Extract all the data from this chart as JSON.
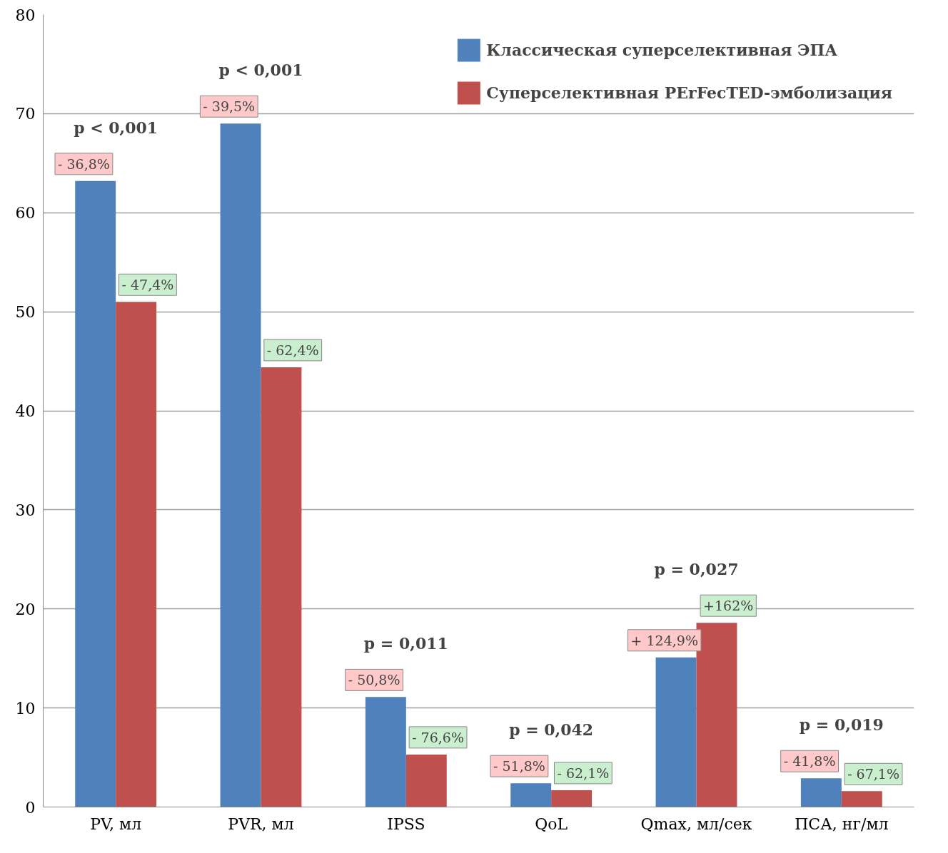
{
  "chart_data": {
    "type": "bar",
    "categories": [
      "PV, мл",
      "PVR, мл",
      "IPSS",
      "QoL",
      "Qmax, мл/сек",
      "ПСА, нг/мл"
    ],
    "series": [
      {
        "name": "Классическая суперселективная ЭПА",
        "color": "#4f81bd",
        "values": [
          63.2,
          69.0,
          11.1,
          2.4,
          15.1,
          2.9
        ]
      },
      {
        "name": "Суперселективная PErFecTED-эмболизация",
        "color": "#c0504d",
        "values": [
          51.0,
          44.4,
          5.3,
          1.7,
          18.6,
          1.6
        ]
      }
    ],
    "ylim": [
      0,
      80
    ],
    "yticks": [
      0,
      10,
      20,
      30,
      40,
      50,
      60,
      70,
      80
    ],
    "grid": "y",
    "legend": "top right",
    "annotations": [
      "p < 0,001",
      "- 36,8%",
      "- 47,4%",
      "p < 0,001",
      "- 39,5%",
      "- 62,4%",
      "p = 0,011",
      "- 50,8%",
      "- 76,6%",
      "p = 0,042",
      "- 51,8%",
      "- 62,1%",
      "p = 0,027",
      "+ 124,9%",
      "+162%",
      "p = 0,019",
      "- 41,8%",
      "- 67,1%"
    ]
  }
}
